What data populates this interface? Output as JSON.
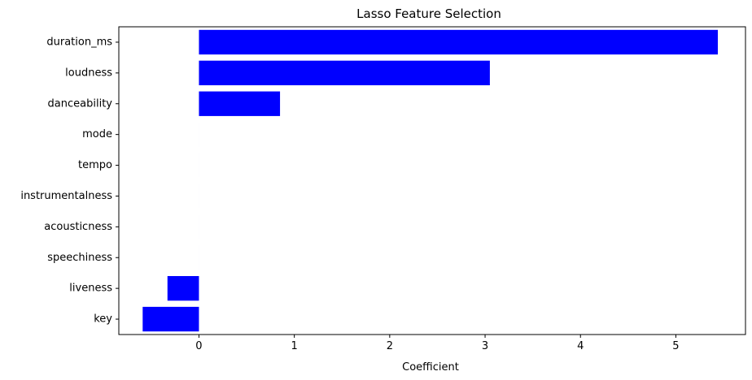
{
  "chart_data": {
    "type": "bar",
    "orientation": "horizontal",
    "title": "Lasso Feature Selection",
    "xlabel": "Coefficient",
    "ylabel": "",
    "categories": [
      "duration_ms",
      "loudness",
      "danceability",
      "mode",
      "tempo",
      "instrumentalness",
      "acousticness",
      "speechiness",
      "liveness",
      "key"
    ],
    "values": [
      5.44,
      3.05,
      0.85,
      0.0,
      0.0,
      0.0,
      0.0,
      0.0,
      -0.33,
      -0.59
    ],
    "xlim": [
      -0.84,
      5.73
    ],
    "xticks": [
      0,
      1,
      2,
      3,
      4,
      5
    ],
    "bar_color": "#0000ff",
    "grid": false,
    "legend": "none"
  }
}
